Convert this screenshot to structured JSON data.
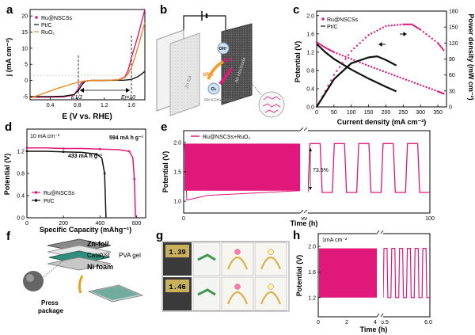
{
  "panel_letters": {
    "a": "a",
    "b": "b",
    "c": "c",
    "d": "d",
    "e": "e",
    "f": "f",
    "g": "g",
    "h": "h"
  },
  "colors": {
    "ru": "#e0187a",
    "pt": "#111111",
    "ruo2": "#e8891c",
    "dash": "#555555"
  },
  "chart_data": [
    {
      "id": "a",
      "type": "line",
      "xlabel": "E (V vs. RHE)",
      "ylabel": "j (mA cm⁻²)",
      "xlim": [
        0.1,
        1.8
      ],
      "ylim": [
        -6,
        22
      ],
      "xticks": [
        0.4,
        0.8,
        1.2,
        1.6
      ],
      "yticks": [
        -5,
        0,
        5,
        10,
        15,
        20
      ],
      "legend": [
        "Ru@NSCSs",
        "Pt/C",
        "RuO₂"
      ],
      "annotations": [
        "E1/2",
        "Ej=10"
      ],
      "series": [
        {
          "name": "Ru@NSCSs",
          "x": [
            0.1,
            0.4,
            0.6,
            0.75,
            0.8,
            0.85,
            0.9,
            1.0,
            1.2,
            1.4,
            1.5,
            1.55,
            1.6,
            1.65,
            1.7,
            1.75,
            1.8
          ],
          "y": [
            -5.2,
            -5.2,
            -5.1,
            -4.5,
            -3.0,
            -1.0,
            -0.2,
            0,
            0,
            0.2,
            1.0,
            3.0,
            7.0,
            10.5,
            14.0,
            18.0,
            22.0
          ]
        },
        {
          "name": "Pt/C",
          "x": [
            0.1,
            0.4,
            0.6,
            0.75,
            0.82,
            0.87,
            0.92,
            1.0,
            1.2,
            1.5,
            1.6,
            1.7,
            1.8
          ],
          "y": [
            -5.0,
            -5.0,
            -4.9,
            -4.4,
            -3.0,
            -1.2,
            -0.2,
            0,
            0,
            0.1,
            0.3,
            1.2,
            2.8
          ]
        },
        {
          "name": "RuO₂",
          "x": [
            0.1,
            0.3,
            0.5,
            0.7,
            0.8,
            0.9,
            1.0,
            1.2,
            1.4,
            1.5,
            1.55,
            1.6,
            1.65,
            1.7,
            1.8
          ],
          "y": [
            -5.5,
            -4.0,
            -2.5,
            -1.2,
            -0.6,
            -0.2,
            0,
            0,
            0.2,
            0.8,
            2.0,
            4.0,
            7.0,
            10.5,
            18.0
          ]
        }
      ]
    },
    {
      "id": "c",
      "type": "line",
      "xlabel": "Current density (mA cm⁻²)",
      "ylabel": "Potential (V)",
      "ylabel2": "Power density (mW cm⁻²)",
      "xlim": [
        0,
        375
      ],
      "ylim": [
        0,
        2.1
      ],
      "ylim2": [
        0,
        180
      ],
      "xticks": [
        0,
        50,
        100,
        150,
        200,
        250,
        300,
        350
      ],
      "yticks": [
        0,
        0.4,
        0.8,
        1.2,
        1.6,
        2.0
      ],
      "yticks2": [
        0,
        30,
        60,
        90,
        120,
        150,
        180
      ],
      "legend": [
        "Ru@NSCSs",
        "Pt/C"
      ],
      "series": [
        {
          "name": "Ru@NSCSs potential",
          "axis": "left",
          "x": [
            0,
            25,
            50,
            100,
            150,
            200,
            250,
            300,
            350,
            370
          ],
          "y": [
            1.42,
            1.3,
            1.2,
            1.05,
            0.9,
            0.76,
            0.62,
            0.48,
            0.34,
            0.28
          ]
        },
        {
          "name": "Pt/C potential",
          "axis": "left",
          "x": [
            0,
            25,
            50,
            100,
            150,
            200,
            230
          ],
          "y": [
            1.38,
            1.2,
            1.05,
            0.82,
            0.62,
            0.44,
            0.34
          ]
        },
        {
          "name": "Ru@NSCSs power",
          "axis": "right",
          "x": [
            0,
            50,
            100,
            150,
            200,
            250,
            275,
            300,
            350,
            370
          ],
          "y": [
            0,
            60,
            105,
            135,
            152,
            155,
            155,
            145,
            120,
            104
          ]
        },
        {
          "name": "Pt/C power",
          "axis": "right",
          "x": [
            0,
            50,
            100,
            150,
            175,
            200,
            230
          ],
          "y": [
            0,
            52,
            82,
            93,
            95,
            88,
            78
          ]
        }
      ]
    },
    {
      "id": "d",
      "type": "line",
      "xlabel": "Specific Capacity (mAhg⁻¹)",
      "ylabel": "Potential (V)",
      "xlim": [
        0,
        650
      ],
      "ylim": [
        0,
        1.6
      ],
      "xticks": [
        0,
        200,
        400,
        600
      ],
      "yticks": [
        0.0,
        0.4,
        0.8,
        1.2
      ],
      "legend": [
        "Ru@NSCSs",
        "Pt/C"
      ],
      "annotations": [
        "10 mA cm⁻²",
        "594 mA h g⁻¹",
        "433 mA h g⁻¹"
      ],
      "series": [
        {
          "name": "Ru@NSCSs",
          "x": [
            0,
            100,
            200,
            300,
            400,
            500,
            560,
            580,
            588,
            594
          ],
          "y": [
            1.26,
            1.26,
            1.25,
            1.25,
            1.24,
            1.23,
            1.2,
            1.08,
            0.7,
            0.0
          ]
        },
        {
          "name": "Pt/C",
          "x": [
            0,
            100,
            200,
            300,
            380,
            410,
            425,
            433
          ],
          "y": [
            1.2,
            1.2,
            1.19,
            1.18,
            1.15,
            1.08,
            0.8,
            0.0
          ]
        }
      ]
    },
    {
      "id": "e",
      "type": "line",
      "xlabel": "Time (h)",
      "ylabel": "Potential (V)",
      "xlim": [
        0,
        100
      ],
      "ylim": [
        0.8,
        2.2
      ],
      "break_at": 99,
      "xticks": [
        0,
        99,
        100
      ],
      "yticks": [
        1.0,
        1.5,
        2.0
      ],
      "legend": [
        "Ru@NSCSs+RuO₂"
      ],
      "annotations": [
        "73.5%"
      ],
      "series": [
        {
          "name": "Ru@NSCSs+RuO₂",
          "charge": 1.98,
          "discharge_start": 1.02,
          "discharge_end": 1.18,
          "discharge_zoom": 1.15,
          "charge_zoom": 1.98,
          "cycles_zoom": 5
        }
      ]
    },
    {
      "id": "h",
      "type": "line",
      "xlabel": "Time (h)",
      "ylabel": "Potential (V)",
      "xlim": [
        0,
        6
      ],
      "ylim": [
        0.9,
        2.2
      ],
      "break_at": 5.5,
      "xticks": [
        0,
        2,
        4,
        5.5,
        6.0
      ],
      "xtick_labels": [
        "0",
        "2",
        "4",
        "5.5",
        "6.0"
      ],
      "yticks": [
        1.2,
        1.6,
        2.0
      ],
      "legend": [
        "1mA cm⁻²"
      ],
      "series": [
        {
          "name": "Ru@NSCSs",
          "charge": 1.97,
          "discharge_start": 1.0,
          "discharge_end": 1.2,
          "cycles_zoom": 6
        }
      ]
    }
  ],
  "schematic_b": {
    "anode": "Zn foil",
    "cathode": "Air electrode",
    "electrolyte": "6M KOH+Zn(Ac)₂",
    "labels": [
      "OH⁻",
      "OER",
      "ORR",
      "O₂"
    ]
  },
  "schematic_f": {
    "labels": [
      "Zn-foil",
      "Catalyst",
      "PVA gel",
      "Ni foam",
      "Press",
      "package"
    ]
  },
  "photos_g": {
    "readings": [
      "1.39",
      "1.46"
    ]
  }
}
